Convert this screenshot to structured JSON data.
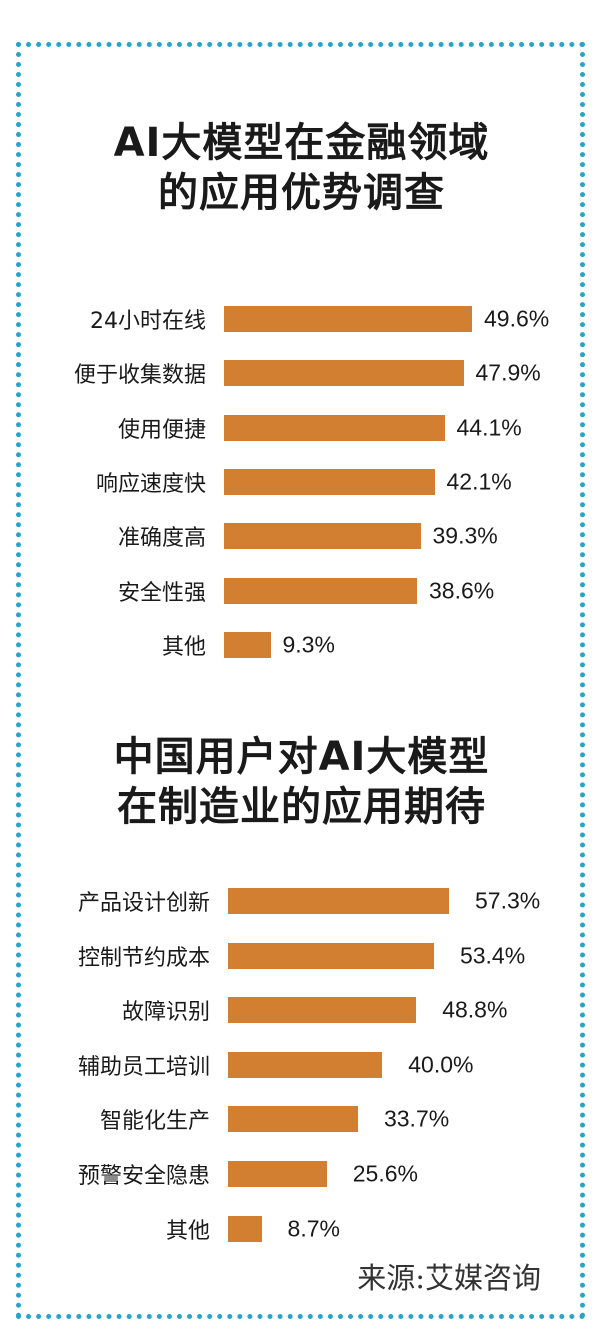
{
  "colors": {
    "bar": "#d37f31",
    "frame": "#27a3cc"
  },
  "chart_data": [
    {
      "type": "bar",
      "orientation": "horizontal",
      "title_lines": [
        "AI大模型在金融领域",
        "的应用优势调查"
      ],
      "categories": [
        "24小时在线",
        "便于收集数据",
        "使用便捷",
        "响应速度快",
        "准确度高",
        "安全性强",
        "其他"
      ],
      "values": [
        49.6,
        47.9,
        44.1,
        42.1,
        39.3,
        38.6,
        9.3
      ],
      "value_labels": [
        "49.6%",
        "47.9%",
        "44.1%",
        "42.1%",
        "39.3%",
        "38.6%",
        "9.3%"
      ],
      "unit": "%"
    },
    {
      "type": "bar",
      "orientation": "horizontal",
      "title_lines": [
        "中国用户对AI大模型",
        "在制造业的应用期待"
      ],
      "categories": [
        "产品设计创新",
        "控制节约成本",
        "故障识别",
        "辅助员工培训",
        "智能化生产",
        "预警安全隐患",
        "其他"
      ],
      "values": [
        57.3,
        53.4,
        48.8,
        40.0,
        33.7,
        25.6,
        8.7
      ],
      "value_labels": [
        "57.3%",
        "53.4%",
        "48.8%",
        "40.0%",
        "33.7%",
        "25.6%",
        "8.7%"
      ],
      "unit": "%"
    }
  ],
  "source": "来源:艾媒咨询"
}
